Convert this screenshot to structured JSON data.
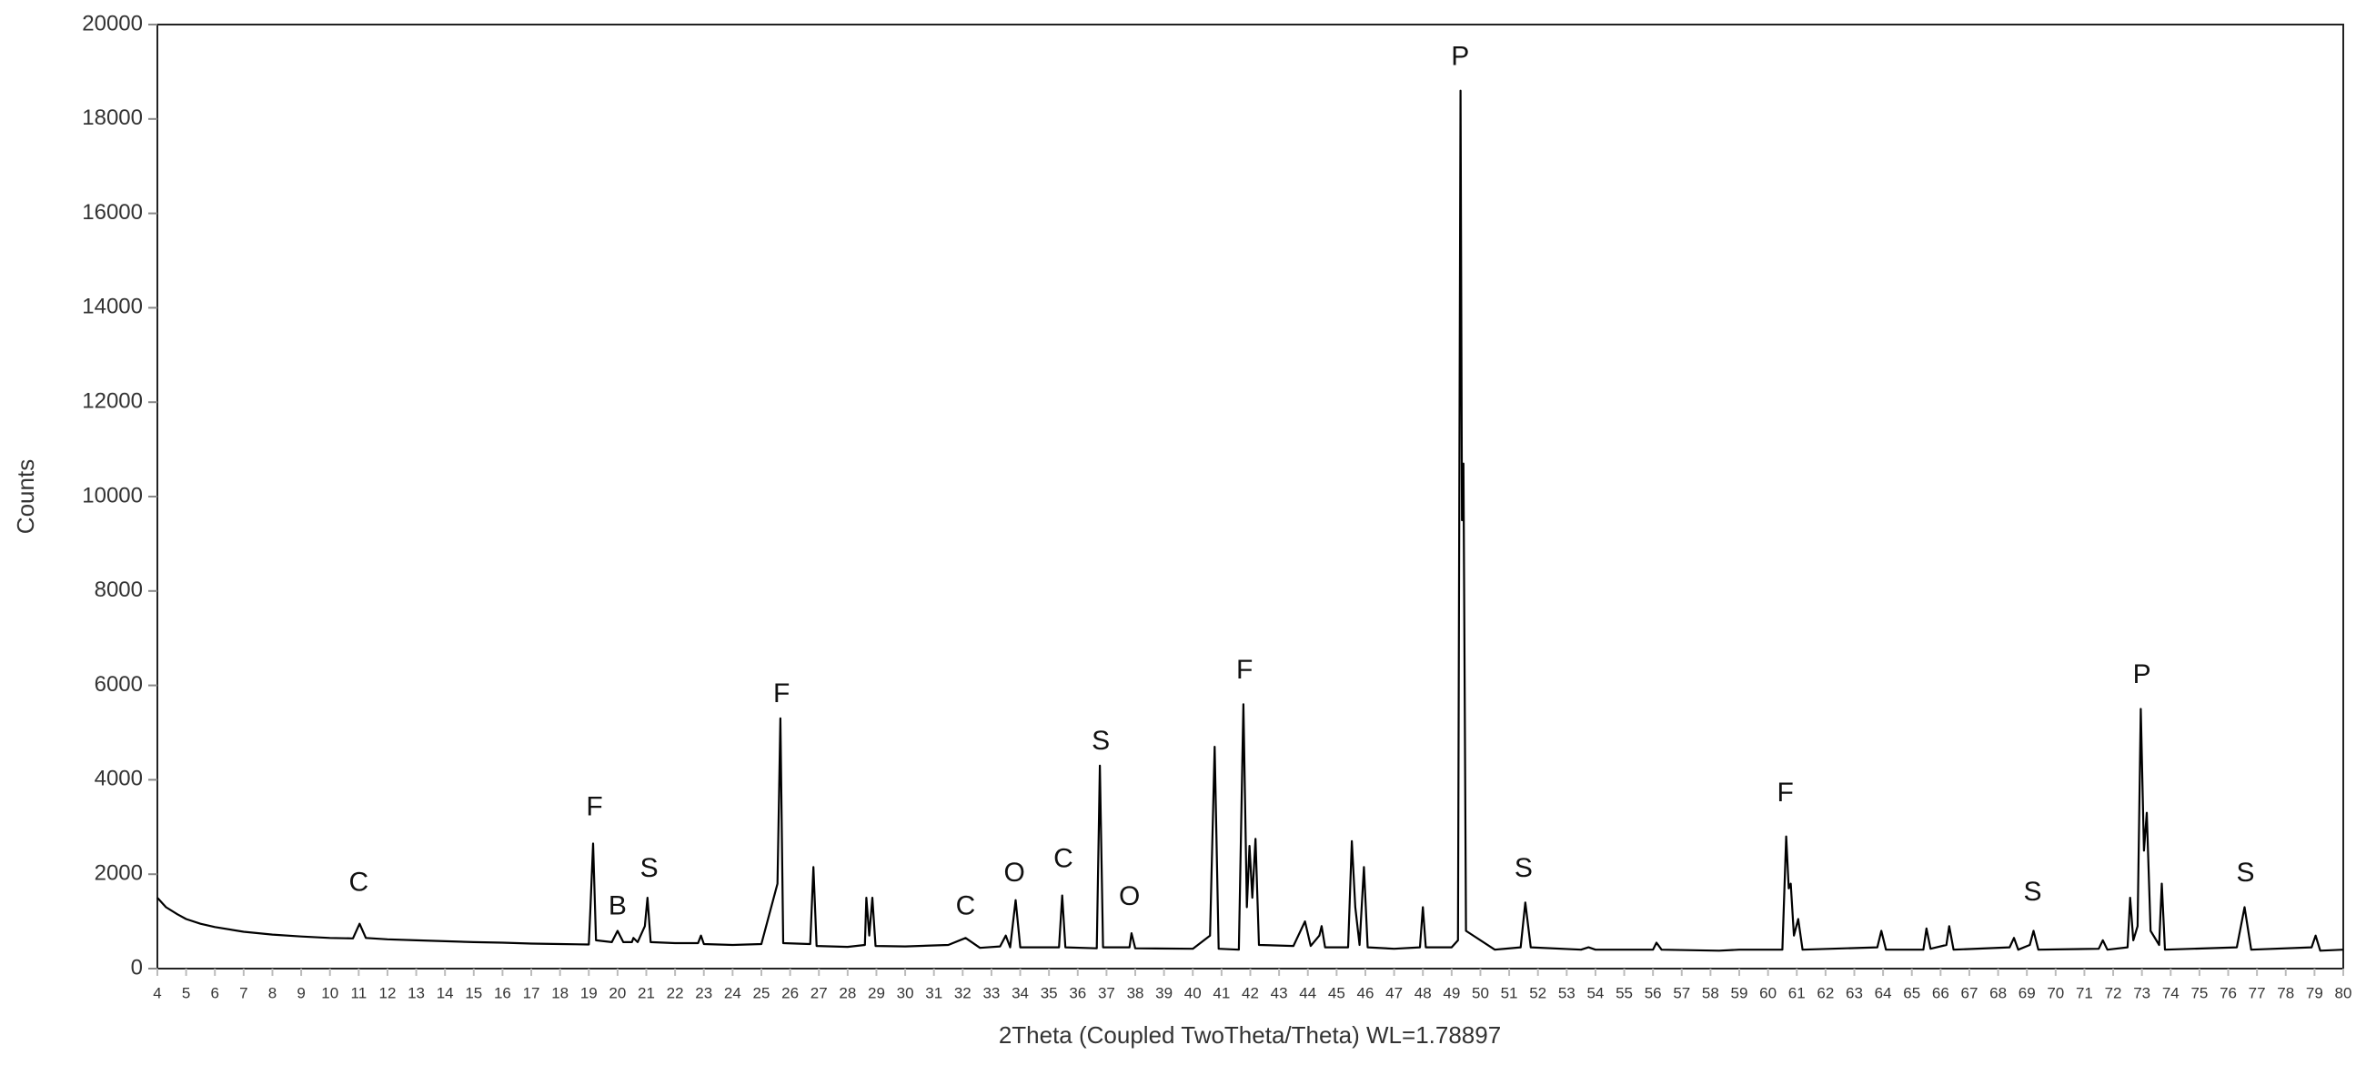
{
  "chart_data": {
    "type": "line",
    "x_label": "2Theta (Coupled TwoTheta/Theta) WL=1.78897",
    "y_label": "Counts",
    "xlim": [
      4,
      80
    ],
    "ylim": [
      0,
      20000
    ],
    "xticks": [
      4,
      5,
      6,
      7,
      8,
      9,
      10,
      11,
      12,
      13,
      14,
      15,
      16,
      17,
      18,
      19,
      20,
      21,
      22,
      23,
      24,
      25,
      26,
      27,
      28,
      29,
      30,
      31,
      32,
      33,
      34,
      35,
      36,
      37,
      38,
      39,
      40,
      41,
      42,
      43,
      44,
      45,
      46,
      47,
      48,
      49,
      50,
      51,
      52,
      53,
      54,
      55,
      56,
      57,
      58,
      59,
      60,
      61,
      62,
      63,
      64,
      65,
      66,
      67,
      68,
      69,
      70,
      71,
      72,
      73,
      74,
      75,
      76,
      77,
      78,
      79,
      80
    ],
    "yticks": [
      0,
      2000,
      4000,
      6000,
      8000,
      10000,
      12000,
      14000,
      16000,
      18000,
      20000
    ],
    "series": [
      {
        "name": "Counts",
        "color": "#000000",
        "x": [
          4,
          4.3,
          4.7,
          5,
          5.5,
          6,
          7,
          8,
          9,
          10,
          10.8,
          11.03,
          11.25,
          12,
          13,
          14,
          15,
          16,
          17,
          18,
          19,
          19.05,
          19.15,
          19.25,
          19.8,
          20.0,
          20.2,
          20.5,
          20.55,
          20.7,
          20.95,
          21.04,
          21.15,
          22,
          22.8,
          22.9,
          23,
          24,
          25,
          25.56,
          25.66,
          25.76,
          26.7,
          26.81,
          26.92,
          28,
          28.6,
          28.65,
          28.75,
          28.86,
          28.97,
          30,
          31.5,
          32.1,
          32.6,
          33.3,
          33.5,
          33.65,
          33.84,
          34,
          35.35,
          35.46,
          35.57,
          36.66,
          36.77,
          36.88,
          37.8,
          37.87,
          38,
          40,
          40.6,
          40.76,
          40.9,
          41.6,
          41.76,
          41.88,
          41.97,
          42.07,
          42.18,
          42.3,
          43.5,
          43.9,
          44.1,
          44.4,
          44.48,
          44.6,
          45.4,
          45.53,
          45.65,
          45.8,
          45.95,
          46.08,
          47,
          47.9,
          48.0,
          48.1,
          49,
          49.22,
          49.31,
          49.36,
          49.41,
          49.5,
          50.5,
          51.4,
          51.56,
          51.75,
          53.5,
          53.76,
          54,
          56,
          56.12,
          56.3,
          58.3,
          59,
          60.5,
          60.63,
          60.72,
          60.79,
          60.9,
          61.05,
          61.2,
          63.8,
          63.94,
          64.1,
          65.4,
          65.51,
          65.65,
          66.2,
          66.3,
          66.45,
          68.4,
          68.55,
          68.7,
          69.1,
          69.23,
          69.4,
          71.5,
          71.64,
          71.8,
          72.5,
          72.59,
          72.7,
          72.85,
          72.96,
          73.07,
          73.17,
          73.3,
          73.6,
          73.69,
          73.8,
          76.3,
          76.57,
          76.8,
          78.9,
          79.04,
          79.2,
          80
        ],
        "values": [
          1500,
          1300,
          1150,
          1050,
          950,
          880,
          780,
          720,
          680,
          650,
          640,
          950,
          650,
          620,
          600,
          580,
          560,
          550,
          530,
          520,
          510,
          1200,
          2650,
          600,
          560,
          800,
          560,
          560,
          650,
          560,
          900,
          1500,
          560,
          540,
          540,
          700,
          520,
          500,
          520,
          1800,
          5300,
          540,
          520,
          2150,
          480,
          460,
          500,
          1500,
          700,
          1500,
          480,
          470,
          500,
          650,
          440,
          470,
          700,
          450,
          1450,
          450,
          450,
          1550,
          450,
          430,
          4300,
          450,
          450,
          750,
          430,
          420,
          700,
          4700,
          420,
          400,
          5600,
          1300,
          2600,
          1500,
          2750,
          500,
          480,
          1000,
          480,
          700,
          900,
          450,
          450,
          2700,
          1300,
          500,
          2150,
          450,
          420,
          450,
          1300,
          450,
          450,
          600,
          18600,
          9500,
          10700,
          800,
          400,
          450,
          1400,
          450,
          400,
          450,
          400,
          400,
          550,
          400,
          380,
          400,
          400,
          2800,
          1700,
          1800,
          700,
          1050,
          400,
          450,
          800,
          400,
          400,
          850,
          420,
          500,
          900,
          400,
          450,
          650,
          400,
          500,
          800,
          400,
          420,
          600,
          400,
          450,
          1500,
          600,
          900,
          5500,
          2500,
          3300,
          800,
          500,
          1800,
          400,
          450,
          1300,
          400,
          450,
          700,
          380,
          400
        ]
      }
    ],
    "annotations": [
      {
        "text": "C",
        "x": 11.0,
        "y": 1800
      },
      {
        "text": "F",
        "x": 19.2,
        "y": 3400
      },
      {
        "text": "B",
        "x": 20.0,
        "y": 1300
      },
      {
        "text": "S",
        "x": 21.1,
        "y": 2100
      },
      {
        "text": "F",
        "x": 25.7,
        "y": 5800
      },
      {
        "text": "C",
        "x": 32.1,
        "y": 1300
      },
      {
        "text": "O",
        "x": 33.8,
        "y": 2000
      },
      {
        "text": "C",
        "x": 35.5,
        "y": 2300
      },
      {
        "text": "S",
        "x": 36.8,
        "y": 4800
      },
      {
        "text": "O",
        "x": 37.8,
        "y": 1500
      },
      {
        "text": "F",
        "x": 41.8,
        "y": 6300
      },
      {
        "text": "P",
        "x": 49.3,
        "y": 19300
      },
      {
        "text": "S",
        "x": 51.5,
        "y": 2100
      },
      {
        "text": "F",
        "x": 60.6,
        "y": 3700
      },
      {
        "text": "S",
        "x": 69.2,
        "y": 1600
      },
      {
        "text": "P",
        "x": 73.0,
        "y": 6200
      },
      {
        "text": "S",
        "x": 76.6,
        "y": 2000
      }
    ]
  }
}
